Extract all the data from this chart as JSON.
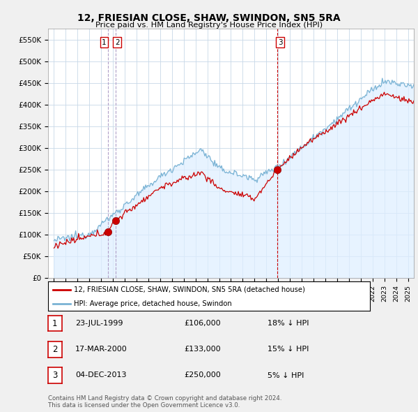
{
  "title": "12, FRIESIAN CLOSE, SHAW, SWINDON, SN5 5RA",
  "subtitle": "Price paid vs. HM Land Registry's House Price Index (HPI)",
  "ylim": [
    0,
    575000
  ],
  "yticks": [
    0,
    50000,
    100000,
    150000,
    200000,
    250000,
    300000,
    350000,
    400000,
    450000,
    500000,
    550000
  ],
  "ytick_labels": [
    "£0",
    "£50K",
    "£100K",
    "£150K",
    "£200K",
    "£250K",
    "£300K",
    "£350K",
    "£400K",
    "£450K",
    "£500K",
    "£550K"
  ],
  "hpi_color": "#7ab3d4",
  "price_color": "#cc0000",
  "grid_color": "#c8d8e8",
  "bg_color": "#f0f0f0",
  "plot_bg_color": "#ffffff",
  "fill_color": "#ddeeff",
  "transactions": [
    {
      "date": "23-JUL-1999",
      "price": 106000,
      "year": 1999.55,
      "label": "1",
      "hpi_pct": "18% ↓ HPI"
    },
    {
      "date": "17-MAR-2000",
      "price": 133000,
      "year": 2000.21,
      "label": "2",
      "hpi_pct": "15% ↓ HPI"
    },
    {
      "date": "04-DEC-2013",
      "price": 250000,
      "year": 2013.92,
      "label": "3",
      "hpi_pct": "5% ↓ HPI"
    }
  ],
  "legend_line1": "12, FRIESIAN CLOSE, SHAW, SWINDON, SN5 5RA (detached house)",
  "legend_line2": "HPI: Average price, detached house, Swindon",
  "footnote": "Contains HM Land Registry data © Crown copyright and database right 2024.\nThis data is licensed under the Open Government Licence v3.0.",
  "xmin": 1994.5,
  "xmax": 2025.5
}
